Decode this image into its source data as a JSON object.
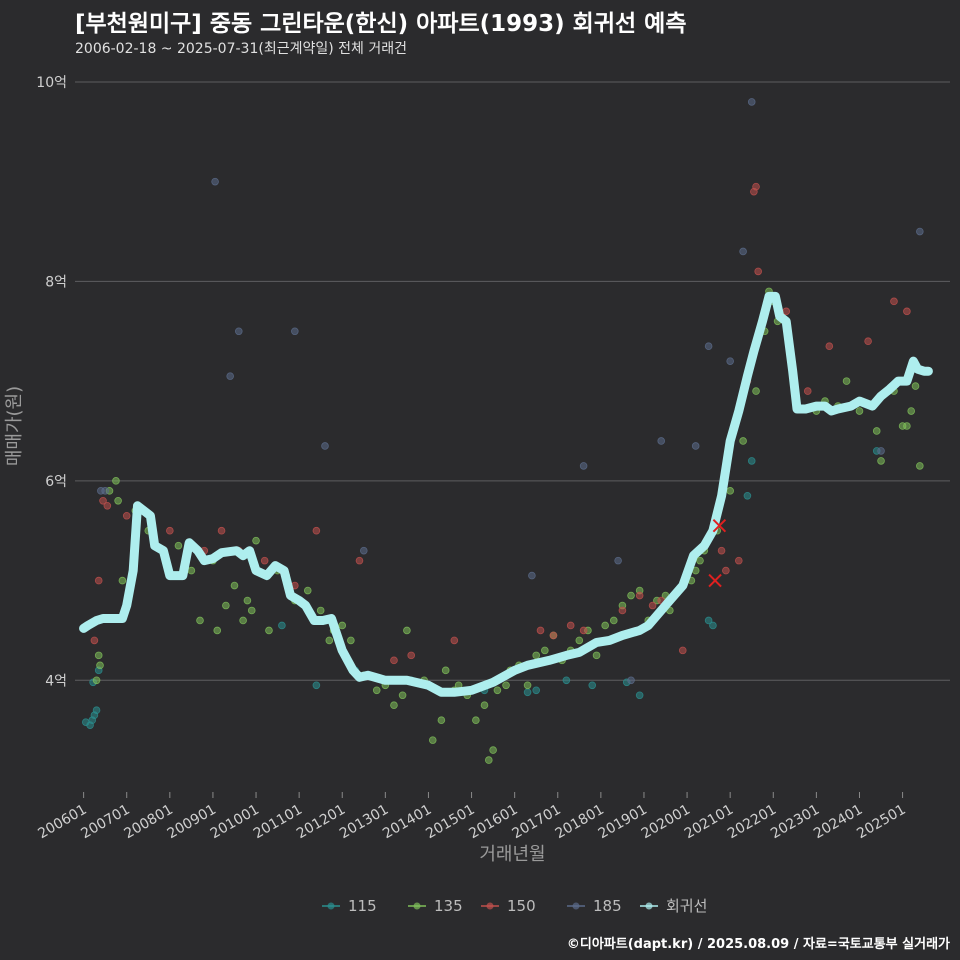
{
  "header": {
    "title": "[부천원미구] 중동 그린타운(한신) 아파트(1993) 회귀선 예측",
    "subtitle": "2006-02-18 ~ 2025-07-31(최근계약일) 전체 거래건"
  },
  "caption": "©디아파트(dapt.kr) / 2025.08.09 / 자료=국토교통부 실거래가",
  "colors": {
    "background": "#2b2b2d",
    "grid": "#5e5e60",
    "s115": "#2a8f8f",
    "s135": "#7fbf5a",
    "s150": "#c0504d",
    "s185": "#5b6b8a",
    "regression": "#aeeeee",
    "marker_x": "#e02020"
  },
  "chart_data": {
    "type": "scatter",
    "title": "[부천원미구] 중동 그린타운(한신) 아파트(1993) 회귀선 예측",
    "xlabel": "거래년월",
    "ylabel": "매매가(원)",
    "xlim": [
      2005.8,
      2026.1
    ],
    "ylim": [
      2.9,
      10.2
    ],
    "y_ticks": [
      4,
      6,
      8,
      10
    ],
    "y_tick_labels": [
      "4억",
      "6억",
      "8억",
      "10억"
    ],
    "x_ticks": [
      2006,
      2007,
      2008,
      2009,
      2010,
      2011,
      2012,
      2013,
      2014,
      2015,
      2016,
      2017,
      2018,
      2019,
      2020,
      2021,
      2022,
      2023,
      2024,
      2025
    ],
    "x_tick_labels": [
      "200601",
      "200701",
      "200801",
      "200901",
      "201001",
      "201101",
      "201201",
      "201301",
      "201401",
      "201501",
      "201601",
      "201701",
      "201801",
      "201901",
      "202001",
      "202101",
      "202201",
      "202301",
      "202401",
      "202501"
    ],
    "legend": [
      "115",
      "135",
      "150",
      "185",
      "회귀선"
    ],
    "series": [
      {
        "name": "115",
        "points": [
          [
            2006.05,
            3.58
          ],
          [
            2006.15,
            3.55
          ],
          [
            2006.2,
            3.6
          ],
          [
            2006.25,
            3.65
          ],
          [
            2006.3,
            3.7
          ],
          [
            2006.22,
            3.98
          ],
          [
            2006.35,
            4.1
          ],
          [
            2010.6,
            4.55
          ],
          [
            2011.4,
            3.95
          ],
          [
            2012.3,
            4.1
          ],
          [
            2013.6,
            4.0
          ],
          [
            2015.3,
            3.9
          ],
          [
            2016.3,
            3.88
          ],
          [
            2016.5,
            3.9
          ],
          [
            2017.2,
            4.0
          ],
          [
            2017.8,
            3.95
          ],
          [
            2018.6,
            3.98
          ],
          [
            2018.9,
            3.85
          ],
          [
            2020.5,
            4.6
          ],
          [
            2020.6,
            4.55
          ],
          [
            2021.4,
            5.85
          ],
          [
            2021.5,
            6.2
          ],
          [
            2024.4,
            6.3
          ]
        ]
      },
      {
        "name": "135",
        "points": [
          [
            2006.3,
            4.0
          ],
          [
            2006.35,
            4.25
          ],
          [
            2006.38,
            4.15
          ],
          [
            2006.6,
            5.9
          ],
          [
            2006.75,
            6.0
          ],
          [
            2006.8,
            5.8
          ],
          [
            2006.9,
            5.0
          ],
          [
            2007.2,
            5.7
          ],
          [
            2007.5,
            5.5
          ],
          [
            2008.2,
            5.35
          ],
          [
            2008.5,
            5.1
          ],
          [
            2008.7,
            4.6
          ],
          [
            2009.0,
            5.2
          ],
          [
            2009.1,
            4.5
          ],
          [
            2009.3,
            4.75
          ],
          [
            2009.5,
            4.95
          ],
          [
            2009.7,
            4.6
          ],
          [
            2009.8,
            4.8
          ],
          [
            2009.9,
            4.7
          ],
          [
            2010.0,
            5.4
          ],
          [
            2010.3,
            4.5
          ],
          [
            2010.5,
            5.1
          ],
          [
            2010.7,
            5.05
          ],
          [
            2010.9,
            4.8
          ],
          [
            2011.2,
            4.9
          ],
          [
            2011.5,
            4.7
          ],
          [
            2011.7,
            4.4
          ],
          [
            2011.8,
            4.5
          ],
          [
            2012.0,
            4.55
          ],
          [
            2012.2,
            4.4
          ],
          [
            2012.5,
            4.05
          ],
          [
            2012.8,
            3.9
          ],
          [
            2013.0,
            3.95
          ],
          [
            2013.2,
            3.75
          ],
          [
            2013.4,
            3.85
          ],
          [
            2013.5,
            4.5
          ],
          [
            2013.9,
            4.0
          ],
          [
            2014.1,
            3.4
          ],
          [
            2014.3,
            3.6
          ],
          [
            2014.4,
            4.1
          ],
          [
            2014.6,
            3.9
          ],
          [
            2014.7,
            3.95
          ],
          [
            2014.9,
            3.85
          ],
          [
            2015.1,
            3.6
          ],
          [
            2015.3,
            3.75
          ],
          [
            2015.4,
            3.2
          ],
          [
            2015.5,
            3.3
          ],
          [
            2015.6,
            3.9
          ],
          [
            2015.8,
            3.95
          ],
          [
            2015.9,
            4.1
          ],
          [
            2016.1,
            4.15
          ],
          [
            2016.3,
            3.95
          ],
          [
            2016.5,
            4.25
          ],
          [
            2016.7,
            4.3
          ],
          [
            2016.9,
            4.45
          ],
          [
            2017.1,
            4.2
          ],
          [
            2017.3,
            4.3
          ],
          [
            2017.5,
            4.4
          ],
          [
            2017.7,
            4.5
          ],
          [
            2017.9,
            4.25
          ],
          [
            2018.1,
            4.55
          ],
          [
            2018.3,
            4.6
          ],
          [
            2018.5,
            4.75
          ],
          [
            2018.7,
            4.85
          ],
          [
            2018.9,
            4.9
          ],
          [
            2019.1,
            4.6
          ],
          [
            2019.3,
            4.8
          ],
          [
            2019.5,
            4.85
          ],
          [
            2019.6,
            4.7
          ],
          [
            2019.8,
            4.9
          ],
          [
            2019.9,
            4.95
          ],
          [
            2020.1,
            5.0
          ],
          [
            2020.2,
            5.1
          ],
          [
            2020.3,
            5.2
          ],
          [
            2020.4,
            5.3
          ],
          [
            2020.6,
            5.5
          ],
          [
            2020.7,
            5.5
          ],
          [
            2021.0,
            5.9
          ],
          [
            2021.3,
            6.4
          ],
          [
            2021.6,
            6.9
          ],
          [
            2021.8,
            7.5
          ],
          [
            2021.9,
            7.9
          ],
          [
            2022.0,
            7.8
          ],
          [
            2022.1,
            7.6
          ],
          [
            2023.0,
            6.7
          ],
          [
            2023.2,
            6.8
          ],
          [
            2023.5,
            6.75
          ],
          [
            2023.7,
            7.0
          ],
          [
            2024.0,
            6.7
          ],
          [
            2024.4,
            6.5
          ],
          [
            2024.5,
            6.2
          ],
          [
            2024.8,
            6.9
          ],
          [
            2025.0,
            6.55
          ],
          [
            2025.1,
            6.55
          ],
          [
            2025.2,
            6.7
          ],
          [
            2025.3,
            6.95
          ],
          [
            2025.4,
            6.15
          ]
        ]
      },
      {
        "name": "150",
        "points": [
          [
            2006.25,
            4.4
          ],
          [
            2006.35,
            5.0
          ],
          [
            2006.45,
            5.8
          ],
          [
            2006.55,
            5.75
          ],
          [
            2007.0,
            5.65
          ],
          [
            2008.0,
            5.5
          ],
          [
            2008.8,
            5.3
          ],
          [
            2009.2,
            5.5
          ],
          [
            2009.6,
            5.3
          ],
          [
            2010.2,
            5.2
          ],
          [
            2010.6,
            5.1
          ],
          [
            2010.9,
            4.95
          ],
          [
            2011.4,
            5.5
          ],
          [
            2012.4,
            5.2
          ],
          [
            2013.2,
            4.2
          ],
          [
            2013.6,
            4.25
          ],
          [
            2014.6,
            4.4
          ],
          [
            2016.6,
            4.5
          ],
          [
            2016.9,
            4.45
          ],
          [
            2017.3,
            4.55
          ],
          [
            2017.6,
            4.5
          ],
          [
            2018.5,
            4.7
          ],
          [
            2018.9,
            4.85
          ],
          [
            2019.2,
            4.75
          ],
          [
            2019.4,
            4.8
          ],
          [
            2019.9,
            4.3
          ],
          [
            2020.8,
            5.3
          ],
          [
            2020.9,
            5.1
          ],
          [
            2021.2,
            5.2
          ],
          [
            2021.4,
            7.0
          ],
          [
            2021.55,
            8.9
          ],
          [
            2021.6,
            8.95
          ],
          [
            2021.65,
            8.1
          ],
          [
            2022.3,
            7.7
          ],
          [
            2022.8,
            6.9
          ],
          [
            2023.3,
            7.35
          ],
          [
            2024.2,
            7.4
          ],
          [
            2024.8,
            7.8
          ],
          [
            2025.1,
            7.7
          ]
        ]
      },
      {
        "name": "185",
        "points": [
          [
            2006.4,
            5.9
          ],
          [
            2006.5,
            5.9
          ],
          [
            2009.05,
            9.0
          ],
          [
            2009.4,
            7.05
          ],
          [
            2009.6,
            7.5
          ],
          [
            2010.9,
            7.5
          ],
          [
            2011.6,
            6.35
          ],
          [
            2012.5,
            5.3
          ],
          [
            2016.4,
            5.05
          ],
          [
            2017.6,
            6.15
          ],
          [
            2018.4,
            5.2
          ],
          [
            2018.7,
            4.0
          ],
          [
            2019.4,
            6.4
          ],
          [
            2020.2,
            6.35
          ],
          [
            2020.5,
            7.35
          ],
          [
            2021.0,
            7.2
          ],
          [
            2021.3,
            8.3
          ],
          [
            2021.5,
            9.8
          ],
          [
            2024.5,
            6.3
          ],
          [
            2025.4,
            8.5
          ]
        ]
      }
    ],
    "regression": [
      [
        2006.0,
        4.52
      ],
      [
        2006.1,
        4.55
      ],
      [
        2006.3,
        4.6
      ],
      [
        2006.45,
        4.62
      ],
      [
        2006.9,
        4.62
      ],
      [
        2007.0,
        4.75
      ],
      [
        2007.15,
        5.1
      ],
      [
        2007.25,
        5.75
      ],
      [
        2007.4,
        5.7
      ],
      [
        2007.55,
        5.65
      ],
      [
        2007.65,
        5.35
      ],
      [
        2007.85,
        5.3
      ],
      [
        2008.0,
        5.05
      ],
      [
        2008.3,
        5.05
      ],
      [
        2008.45,
        5.38
      ],
      [
        2008.65,
        5.3
      ],
      [
        2008.8,
        5.2
      ],
      [
        2009.0,
        5.22
      ],
      [
        2009.2,
        5.28
      ],
      [
        2009.55,
        5.3
      ],
      [
        2009.7,
        5.25
      ],
      [
        2009.85,
        5.3
      ],
      [
        2010.0,
        5.1
      ],
      [
        2010.25,
        5.05
      ],
      [
        2010.45,
        5.15
      ],
      [
        2010.65,
        5.1
      ],
      [
        2010.8,
        4.85
      ],
      [
        2011.0,
        4.8
      ],
      [
        2011.15,
        4.75
      ],
      [
        2011.35,
        4.6
      ],
      [
        2011.55,
        4.6
      ],
      [
        2011.75,
        4.62
      ],
      [
        2012.0,
        4.3
      ],
      [
        2012.25,
        4.1
      ],
      [
        2012.4,
        4.03
      ],
      [
        2012.6,
        4.05
      ],
      [
        2013.0,
        4.0
      ],
      [
        2013.5,
        4.0
      ],
      [
        2014.0,
        3.95
      ],
      [
        2014.3,
        3.88
      ],
      [
        2014.6,
        3.88
      ],
      [
        2015.0,
        3.9
      ],
      [
        2015.5,
        3.98
      ],
      [
        2016.0,
        4.1
      ],
      [
        2016.3,
        4.15
      ],
      [
        2016.8,
        4.2
      ],
      [
        2017.2,
        4.25
      ],
      [
        2017.5,
        4.28
      ],
      [
        2017.9,
        4.38
      ],
      [
        2018.2,
        4.4
      ],
      [
        2018.5,
        4.45
      ],
      [
        2018.9,
        4.5
      ],
      [
        2019.1,
        4.55
      ],
      [
        2019.3,
        4.65
      ],
      [
        2019.6,
        4.8
      ],
      [
        2019.9,
        4.95
      ],
      [
        2020.15,
        5.25
      ],
      [
        2020.4,
        5.35
      ],
      [
        2020.6,
        5.5
      ],
      [
        2020.8,
        5.85
      ],
      [
        2021.0,
        6.4
      ],
      [
        2021.2,
        6.7
      ],
      [
        2021.4,
        7.05
      ],
      [
        2021.55,
        7.3
      ],
      [
        2021.75,
        7.6
      ],
      [
        2021.9,
        7.85
      ],
      [
        2022.05,
        7.85
      ],
      [
        2022.15,
        7.65
      ],
      [
        2022.3,
        7.6
      ],
      [
        2022.45,
        7.1
      ],
      [
        2022.55,
        6.72
      ],
      [
        2022.75,
        6.72
      ],
      [
        2023.0,
        6.75
      ],
      [
        2023.2,
        6.75
      ],
      [
        2023.35,
        6.7
      ],
      [
        2023.5,
        6.72
      ],
      [
        2023.8,
        6.75
      ],
      [
        2024.0,
        6.8
      ],
      [
        2024.3,
        6.75
      ],
      [
        2024.5,
        6.85
      ],
      [
        2024.7,
        6.92
      ],
      [
        2024.9,
        7.0
      ],
      [
        2025.1,
        7.0
      ],
      [
        2025.25,
        7.2
      ],
      [
        2025.35,
        7.12
      ],
      [
        2025.5,
        7.1
      ],
      [
        2025.6,
        7.1
      ]
    ],
    "markers_x": [
      [
        2020.75,
        5.55
      ],
      [
        2020.65,
        5.0
      ]
    ]
  }
}
